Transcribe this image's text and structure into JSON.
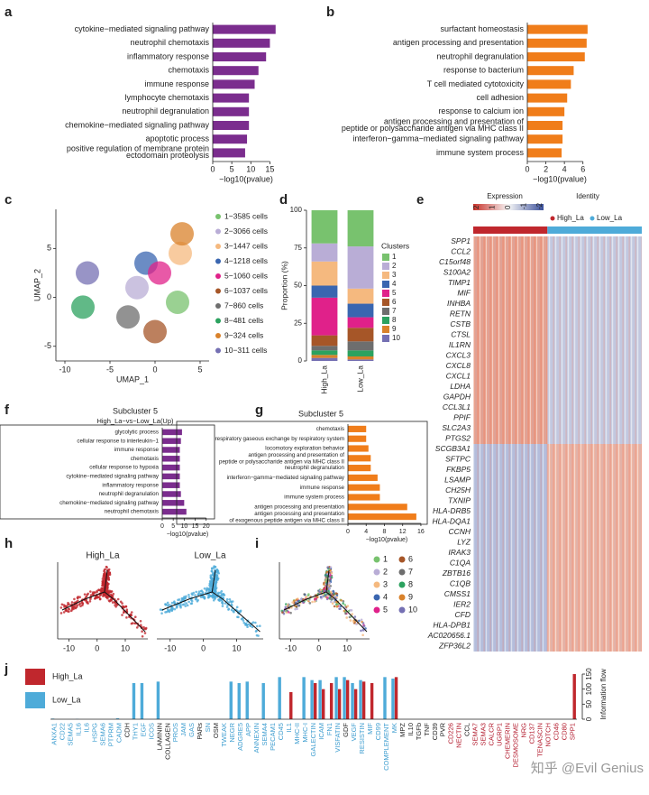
{
  "chart_data": [
    {
      "panel": "a",
      "type": "hbar",
      "color": "#7b2d8e",
      "xlabel": "−log10(pvalue)",
      "xlim": [
        0,
        17.5
      ],
      "xticks": [
        0,
        5,
        10,
        15
      ],
      "categories": [
        "cytokine−mediated signaling pathway",
        "neutrophil chemotaxis",
        "inflammatory response",
        "chemotaxis",
        "immune response",
        "lymphocyte chemotaxis",
        "neutrophil degranulation",
        "chemokine−mediated signaling pathway",
        "apoptotic process",
        "positive regulation of membrane protein\nectodomain proteolysis"
      ],
      "values": [
        16.5,
        15,
        14,
        12,
        11,
        9.5,
        9.5,
        9.5,
        9,
        8.5
      ]
    },
    {
      "panel": "b",
      "type": "hbar",
      "color": "#f07d1a",
      "xlabel": "−log10(pvalue)",
      "xlim": [
        0,
        7
      ],
      "xticks": [
        0,
        2,
        4,
        6
      ],
      "categories": [
        "surfactant homeostasis",
        "antigen processing and presentation",
        "neutrophil degranulation",
        "response to bacterium",
        "T cell mediated cytotoxicity",
        "cell adhesion",
        "response to calcium ion",
        "antigen processing and presentation of\npeptide or polysaccharide antigen via MHC class II",
        "interferon−gamma−mediated signaling pathway",
        "immune system process"
      ],
      "values": [
        6.5,
        6.4,
        6.2,
        5,
        4.7,
        4.3,
        4,
        3.8,
        3.8,
        3.7
      ]
    },
    {
      "panel": "c",
      "type": "scatter",
      "xlabel": "UMAP_1",
      "ylabel": "UMAP_2",
      "xlim": [
        -11,
        6
      ],
      "ylim": [
        -6.5,
        9
      ],
      "xticks": [
        -10,
        -5,
        0,
        5
      ],
      "yticks": [
        -5,
        0,
        5
      ],
      "series": [
        {
          "name": "1−3585  cells",
          "color": "#78c26e",
          "x": [
            2.5
          ],
          "values": [
            -0.5
          ]
        },
        {
          "name": "2−3066  cells",
          "color": "#b9add6",
          "x": [
            -2
          ],
          "values": [
            1
          ]
        },
        {
          "name": "3−1447  cells",
          "color": "#f5b97f",
          "x": [
            2.8
          ],
          "values": [
            4.5
          ]
        },
        {
          "name": "4−1218  cells",
          "color": "#3a66b0",
          "x": [
            -1
          ],
          "values": [
            3.5
          ]
        },
        {
          "name": "5−1060  cells",
          "color": "#e0218a",
          "x": [
            0.5
          ],
          "values": [
            2.5
          ]
        },
        {
          "name": "6−1037  cells",
          "color": "#a65628",
          "x": [
            0
          ],
          "values": [
            -3.5
          ]
        },
        {
          "name": "7−860  cells",
          "color": "#6e6e6e",
          "x": [
            -3
          ],
          "values": [
            -2
          ]
        },
        {
          "name": "8−481  cells",
          "color": "#2ca25f",
          "x": [
            -8
          ],
          "values": [
            -1
          ]
        },
        {
          "name": "9−324  cells",
          "color": "#d9822b",
          "x": [
            3
          ],
          "values": [
            6.5
          ]
        },
        {
          "name": "10−311  cells",
          "color": "#7570b3",
          "x": [
            -7.5
          ],
          "values": [
            2.5
          ]
        }
      ]
    },
    {
      "panel": "d",
      "type": "stacked",
      "ylabel": "Proportion (%)",
      "legend_title": "Clusters",
      "ylim": [
        0,
        100
      ],
      "yticks": [
        0,
        25,
        50,
        75,
        100
      ],
      "categories": [
        "High_La",
        "Low_La"
      ],
      "series": [
        {
          "name": "1",
          "color": "#78c26e",
          "values": [
            22,
            24
          ]
        },
        {
          "name": "2",
          "color": "#b9add6",
          "values": [
            12,
            28
          ]
        },
        {
          "name": "3",
          "color": "#f5b97f",
          "values": [
            16,
            10
          ]
        },
        {
          "name": "4",
          "color": "#3a66b0",
          "values": [
            8,
            9
          ]
        },
        {
          "name": "5",
          "color": "#e0218a",
          "values": [
            25,
            7
          ]
        },
        {
          "name": "6",
          "color": "#a65628",
          "values": [
            7,
            9
          ]
        },
        {
          "name": "7",
          "color": "#6e6e6e",
          "values": [
            3,
            6
          ]
        },
        {
          "name": "8",
          "color": "#2ca25f",
          "values": [
            3,
            4
          ]
        },
        {
          "name": "9",
          "color": "#d9822b",
          "values": [
            2,
            2
          ]
        },
        {
          "name": "10",
          "color": "#7570b3",
          "values": [
            2,
            1
          ]
        }
      ]
    },
    {
      "panel": "e",
      "type": "heatmap",
      "legend_title": "Expression",
      "legend_ticks": [
        2,
        1,
        0,
        -1,
        -2
      ],
      "identity_title": "Identity",
      "series": [
        {
          "name": "High_La",
          "color": "#c0272d"
        },
        {
          "name": "Low_La",
          "color": "#4eabd9"
        }
      ],
      "rows": [
        "SPP1",
        "CCL2",
        "C15orf48",
        "S100A2",
        "TIMP1",
        "MIF",
        "INHBA",
        "RETN",
        "CSTB",
        "CTSL",
        "IL1RN",
        "CXCL3",
        "CXCL8",
        "CXCL1",
        "LDHA",
        "GAPDH",
        "CCL3L1",
        "PPIF",
        "SLC2A3",
        "PTGS2",
        "SCGB3A1",
        "SFTPC",
        "FKBP5",
        "LSAMP",
        "CH25H",
        "TXNIP",
        "HLA-DRB5",
        "HLA-DQA1",
        "CCNH",
        "LYZ",
        "IRAK3",
        "C1QA",
        "ZBTB16",
        "C1QB",
        "CMSS1",
        "IER2",
        "CFD",
        "HLA-DPB1",
        "AC020656.1",
        "ZFP36L2"
      ]
    },
    {
      "panel": "f",
      "type": "hbar",
      "title": "Subcluster 5",
      "subtitle": "High_La−vs−Low_La(Up)",
      "frame": true,
      "color": "#7b2d8e",
      "xlabel": "−log10(pvalue)",
      "xlim": [
        0,
        23
      ],
      "xticks": [
        0,
        5,
        10,
        15,
        20
      ],
      "categories": [
        "glycolytic process",
        "cellular response to interleukin−1",
        "immune response",
        "chemotaxis",
        "cellular response to hypoxia",
        "cytokine−mediated signaling pathway",
        "inflammatory response",
        "neutrophil degranulation",
        "chemokine−mediated signaling pathway",
        "neutrophil chemotaxis"
      ],
      "values": [
        9,
        8.5,
        8,
        8,
        8,
        8,
        8,
        8.5,
        10,
        11
      ]
    },
    {
      "panel": "g",
      "type": "hbar",
      "title": "Subcluster 5",
      "frame": true,
      "color": "#f07d1a",
      "xlabel": "−log10(pvalue)",
      "xlim": [
        0,
        17
      ],
      "xticks": [
        0,
        4,
        8,
        12,
        16
      ],
      "categories": [
        "chemotaxis",
        "respiratory gaseous exchange by respiratory system",
        "locomotory exploration behavior",
        "antigen processing and presentation of\npeptide or polysaccharide antigen via MHC class II",
        "neutrophil degranulation",
        "interferon−gamma−mediated signaling pathway",
        "immune response",
        "immune system process",
        "antigen processing and presentation",
        "antigen processing and presentation\nof exogenous peptide antigen via MHC class II"
      ],
      "values": [
        4,
        4,
        4.5,
        5,
        5,
        6.5,
        7,
        7,
        13,
        15
      ]
    },
    {
      "panel": "h",
      "type": "trajectory",
      "title": "High_La",
      "color": "#c0272d",
      "xlim": [
        -14,
        18
      ],
      "xticks": [
        -10,
        0,
        10
      ]
    },
    {
      "type": "trajectory",
      "title": "Low_La",
      "color": "#4eabd9",
      "xlim": [
        -14,
        18
      ],
      "xticks": [
        -10,
        0,
        10
      ]
    },
    {
      "panel": "i",
      "type": "trajectory",
      "xlim": [
        -14,
        18
      ],
      "xticks": [
        -10,
        0,
        10
      ],
      "series": [
        {
          "name": "1",
          "color": "#78c26e"
        },
        {
          "name": "2",
          "color": "#b9add6"
        },
        {
          "name": "3",
          "color": "#f5b97f"
        },
        {
          "name": "4",
          "color": "#3a66b0"
        },
        {
          "name": "5",
          "color": "#e0218a"
        },
        {
          "name": "6",
          "color": "#a65628"
        },
        {
          "name": "7",
          "color": "#6e6e6e"
        },
        {
          "name": "8",
          "color": "#2ca25f"
        },
        {
          "name": "9",
          "color": "#d9822b"
        },
        {
          "name": "10",
          "color": "#7570b3"
        }
      ]
    },
    {
      "panel": "j",
      "type": "groupbar",
      "y2label": "Information flow",
      "y2lim": [
        0,
        165
      ],
      "y2ticks": [
        0,
        50,
        100,
        150
      ],
      "categories": [
        "ANXA1",
        "CD22",
        "SEMA5",
        "IL16",
        "IL6",
        "HSPG",
        "SEMA6",
        "PTPRM",
        "CADM",
        "CDH",
        "THY1",
        "EGF",
        "ICOS",
        "LAMININ",
        "COLLAGEN",
        "PROS",
        "JAM",
        "GAS",
        "PARs",
        "SN",
        "OSM",
        "TWEAK",
        "NEGR",
        "ADGRE5",
        "APP",
        "ANNEXIN",
        "SEMA4",
        "PECAM1",
        "CD45",
        "IL1",
        "MHC-II",
        "MHC-I",
        "GALECTIN",
        "ICAM",
        "FN1",
        "VISFATIN",
        "GDF",
        "VEGF",
        "RESISTIN",
        "MIF",
        "CD99",
        "COMPLEMENT",
        "MK",
        "MPZ",
        "IL10",
        "TGFb",
        "TNF",
        "CD39",
        "PVR",
        "CD226",
        "NECTIN",
        "CCL",
        "SEMA7",
        "SEMA3",
        "CALCR",
        "UGRP1",
        "CHEMERIN",
        "DESMOSOME",
        "NRG",
        "CD137",
        "TENASCIN",
        "NOTCH",
        "CD46",
        "CD80",
        "SPP1"
      ],
      "label_colors": [
        "#3b9ccf",
        "#3b9ccf",
        "#3b9ccf",
        "#3b9ccf",
        "#3b9ccf",
        "#3b9ccf",
        "#3b9ccf",
        "#3b9ccf",
        "#3b9ccf",
        "#222222",
        "#3b9ccf",
        "#3b9ccf",
        "#3b9ccf",
        "#222222",
        "#222222",
        "#3b9ccf",
        "#3b9ccf",
        "#3b9ccf",
        "#222222",
        "#3b9ccf",
        "#222222",
        "#3b9ccf",
        "#3b9ccf",
        "#3b9ccf",
        "#3b9ccf",
        "#3b9ccf",
        "#3b9ccf",
        "#3b9ccf",
        "#3b9ccf",
        "#3b9ccf",
        "#3b9ccf",
        "#3b9ccf",
        "#3b9ccf",
        "#3b9ccf",
        "#3b9ccf",
        "#3b9ccf",
        "#222222",
        "#3b9ccf",
        "#3b9ccf",
        "#3b9ccf",
        "#3b9ccf",
        "#3b9ccf",
        "#3b9ccf",
        "#222222",
        "#222222",
        "#222222",
        "#222222",
        "#222222",
        "#222222",
        "#b2182b",
        "#b2182b",
        "#222222",
        "#b2182b",
        "#b2182b",
        "#b2182b",
        "#b2182b",
        "#b2182b",
        "#b2182b",
        "#b2182b",
        "#b2182b",
        "#b2182b",
        "#b2182b",
        "#b2182b",
        "#b2182b",
        "#b2182b"
      ],
      "series": [
        {
          "name": "High_La",
          "color": "#c0272d",
          "axis": "y2",
          "values": [
            0,
            0,
            0,
            0,
            0,
            0,
            0,
            0,
            0,
            0,
            0,
            0,
            0,
            0,
            0,
            0,
            0,
            0,
            0,
            0,
            0,
            0,
            0,
            0,
            0,
            0,
            0,
            0,
            0,
            90,
            0,
            0,
            120,
            100,
            120,
            100,
            130,
            100,
            125,
            120,
            0,
            0,
            140,
            0,
            0,
            0,
            0,
            0,
            0,
            0,
            0,
            0,
            0,
            0,
            0,
            0,
            0,
            0,
            0,
            0,
            0,
            0,
            0,
            0,
            150
          ]
        },
        {
          "name": "Low_La",
          "color": "#4eabd9",
          "axis": "y2",
          "values": [
            2,
            0,
            0,
            1,
            0,
            0,
            0,
            0,
            3,
            0,
            120,
            120,
            0,
            125,
            0,
            0,
            0,
            0,
            0,
            0,
            0,
            0,
            125,
            120,
            125,
            0,
            120,
            0,
            140,
            0,
            0,
            140,
            130,
            130,
            0,
            140,
            140,
            120,
            130,
            0,
            0,
            140,
            135,
            0,
            0,
            0,
            0,
            0,
            0,
            0,
            0,
            0,
            0,
            0,
            0,
            0,
            0,
            0,
            0,
            0,
            0,
            0,
            0,
            0,
            0
          ]
        }
      ]
    }
  ],
  "watermark": "知乎 @Evil Genius"
}
